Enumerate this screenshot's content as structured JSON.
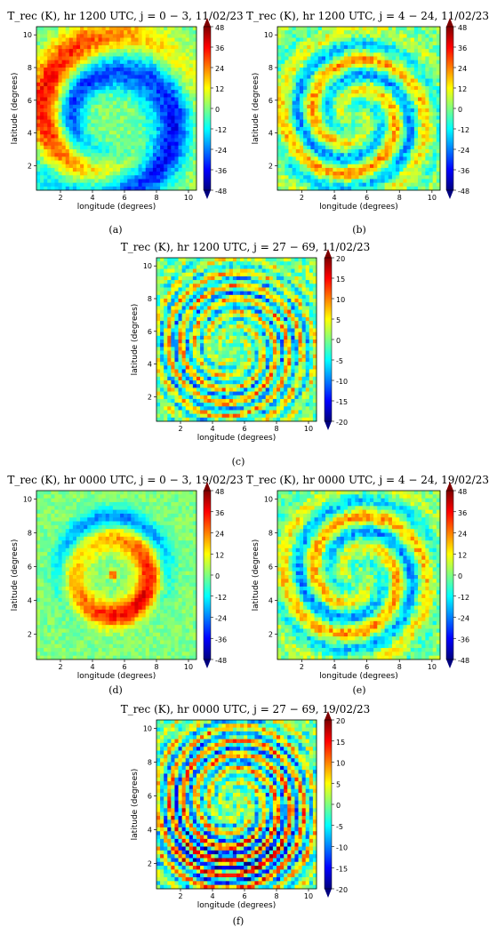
{
  "figure": {
    "colorscale": [
      "#00007f",
      "#0000ff",
      "#007fff",
      "#00ffff",
      "#7fff7f",
      "#ffff00",
      "#ff7f00",
      "#ff0000",
      "#7f0000"
    ]
  },
  "chart_data": [
    {
      "type": "heatmap",
      "panel_label": "(a)",
      "title": "T_rec (K), hr 1200 UTC, j = 0 − 3, 11/02/23",
      "xlabel": "longitude (degrees)",
      "ylabel": "latitude (degrees)",
      "xlim": [
        0.5,
        10.5
      ],
      "ylim": [
        0.5,
        10.5
      ],
      "xticks": [
        2,
        4,
        6,
        8,
        10
      ],
      "yticks": [
        2,
        4,
        6,
        8,
        10
      ],
      "colorbar_ticks": [
        48,
        36,
        24,
        12,
        0,
        -12,
        -24,
        -36,
        -48
      ],
      "vmin": -48,
      "vmax": 48,
      "pattern": "large-scale spiral band; warm outer arc east/north, cold inner ring"
    },
    {
      "type": "heatmap",
      "panel_label": "(b)",
      "title": "T_rec (K), hr 1200 UTC, j = 4 − 24, 11/02/23",
      "xlabel": "longitude (degrees)",
      "ylabel": "latitude (degrees)",
      "xlim": [
        0.5,
        10.5
      ],
      "ylim": [
        0.5,
        10.5
      ],
      "xticks": [
        2,
        4,
        6,
        8,
        10
      ],
      "yticks": [
        2,
        4,
        6,
        8,
        10
      ],
      "colorbar_ticks": [
        48,
        36,
        24,
        12,
        0,
        -12,
        -24,
        -36,
        -48
      ],
      "vmin": -48,
      "vmax": 48,
      "pattern": "mesoscale spiral filaments"
    },
    {
      "type": "heatmap",
      "panel_label": "(c)",
      "title": "T_rec (K), hr 1200 UTC, j = 27 − 69, 11/02/23",
      "xlabel": "longitude (degrees)",
      "ylabel": "latitude (degrees)",
      "xlim": [
        0.5,
        10.5
      ],
      "ylim": [
        0.5,
        10.5
      ],
      "xticks": [
        2,
        4,
        6,
        8,
        10
      ],
      "yticks": [
        2,
        4,
        6,
        8,
        10
      ],
      "colorbar_ticks": [
        20,
        15,
        10,
        5,
        0,
        -5,
        -10,
        -15,
        -20
      ],
      "vmin": -20,
      "vmax": 20,
      "pattern": "fine-scale spiral wave pattern"
    },
    {
      "type": "heatmap",
      "panel_label": "(d)",
      "title": "T_rec (K), hr 0000 UTC, j = 0 − 3, 19/02/23",
      "xlabel": "longitude (degrees)",
      "ylabel": "latitude (degrees)",
      "xlim": [
        0.5,
        10.5
      ],
      "ylim": [
        0.5,
        10.5
      ],
      "xticks": [
        2,
        4,
        6,
        8,
        10
      ],
      "yticks": [
        2,
        4,
        6,
        8,
        10
      ],
      "colorbar_ticks": [
        48,
        36,
        24,
        12,
        0,
        -12,
        -24,
        -36,
        -48
      ],
      "vmin": -48,
      "vmax": 48,
      "pattern": "warm spiral band with warm core near (5.3, 5.5)"
    },
    {
      "type": "heatmap",
      "panel_label": "(e)",
      "title": "T_rec (K), hr 0000 UTC, j = 4 − 24, 19/02/23",
      "xlabel": "longitude (degrees)",
      "ylabel": "latitude (degrees)",
      "xlim": [
        0.5,
        10.5
      ],
      "ylim": [
        0.5,
        10.5
      ],
      "xticks": [
        2,
        4,
        6,
        8,
        10
      ],
      "yticks": [
        2,
        4,
        6,
        8,
        10
      ],
      "colorbar_ticks": [
        48,
        36,
        24,
        12,
        0,
        -12,
        -24,
        -36,
        -48
      ],
      "vmin": -48,
      "vmax": 48,
      "pattern": "mesoscale spiral filaments"
    },
    {
      "type": "heatmap",
      "panel_label": "(f)",
      "title": "T_rec (K), hr 0000 UTC, j = 27 − 69, 19/02/23",
      "xlabel": "longitude (degrees)",
      "ylabel": "latitude (degrees)",
      "xlim": [
        0.5,
        10.5
      ],
      "ylim": [
        0.5,
        10.5
      ],
      "xticks": [
        2,
        4,
        6,
        8,
        10
      ],
      "yticks": [
        2,
        4,
        6,
        8,
        10
      ],
      "colorbar_ticks": [
        20,
        15,
        10,
        5,
        0,
        -5,
        -10,
        -15,
        -20
      ],
      "vmin": -20,
      "vmax": 20,
      "pattern": "fine-scale spiral wave pattern, strongest in south"
    }
  ]
}
